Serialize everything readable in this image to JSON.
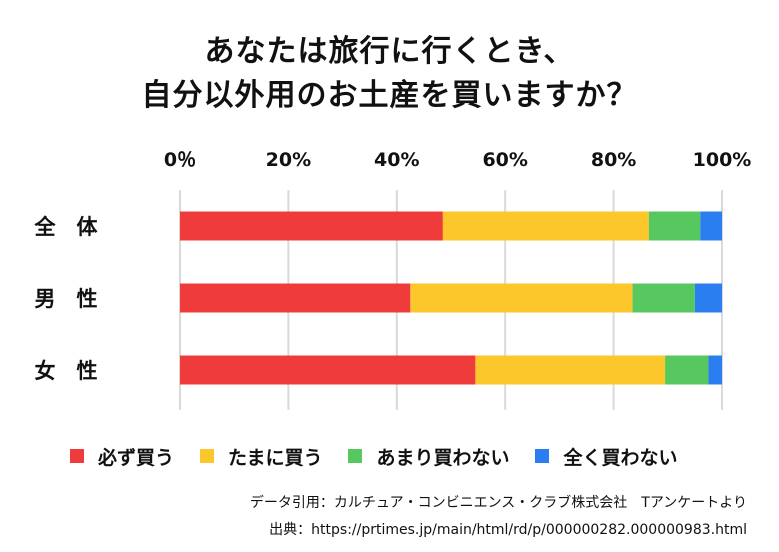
{
  "title_line1": "あなたは旅行に行くとき、",
  "title_line2": "自分以外用のお土産を買いますか？",
  "credit": "データ引用：カルチュア・コンビニエンス・クラブ株式会社　Tアンケートより",
  "source": "出典：https://prtimes.jp/main/html/rd/p/000000282.000000983.html",
  "chart_data": {
    "type": "bar",
    "orientation": "horizontal",
    "stacked": true,
    "title": "あなたは旅行に行くとき、自分以外用のお土産を買いますか？",
    "categories": [
      "全　体",
      "男　性",
      "女　性"
    ],
    "x_ticks": [
      "0％",
      "20%",
      "40%",
      "60%",
      "80%",
      "100%"
    ],
    "xlim": [
      0,
      100
    ],
    "grid": true,
    "legend_position": "bottom",
    "series": [
      {
        "name": "必ず買う",
        "color": "#ef3b3b",
        "values": [
          48.5,
          42.5,
          54.5
        ]
      },
      {
        "name": "たまに買う",
        "color": "#fbc72a",
        "values": [
          38,
          41,
          35
        ]
      },
      {
        "name": "あまり買わない",
        "color": "#57c75f",
        "values": [
          9.5,
          11.5,
          8
        ]
      },
      {
        "name": "全く買わない",
        "color": "#2b7ef0",
        "values": [
          4,
          5,
          2.5
        ]
      }
    ]
  }
}
